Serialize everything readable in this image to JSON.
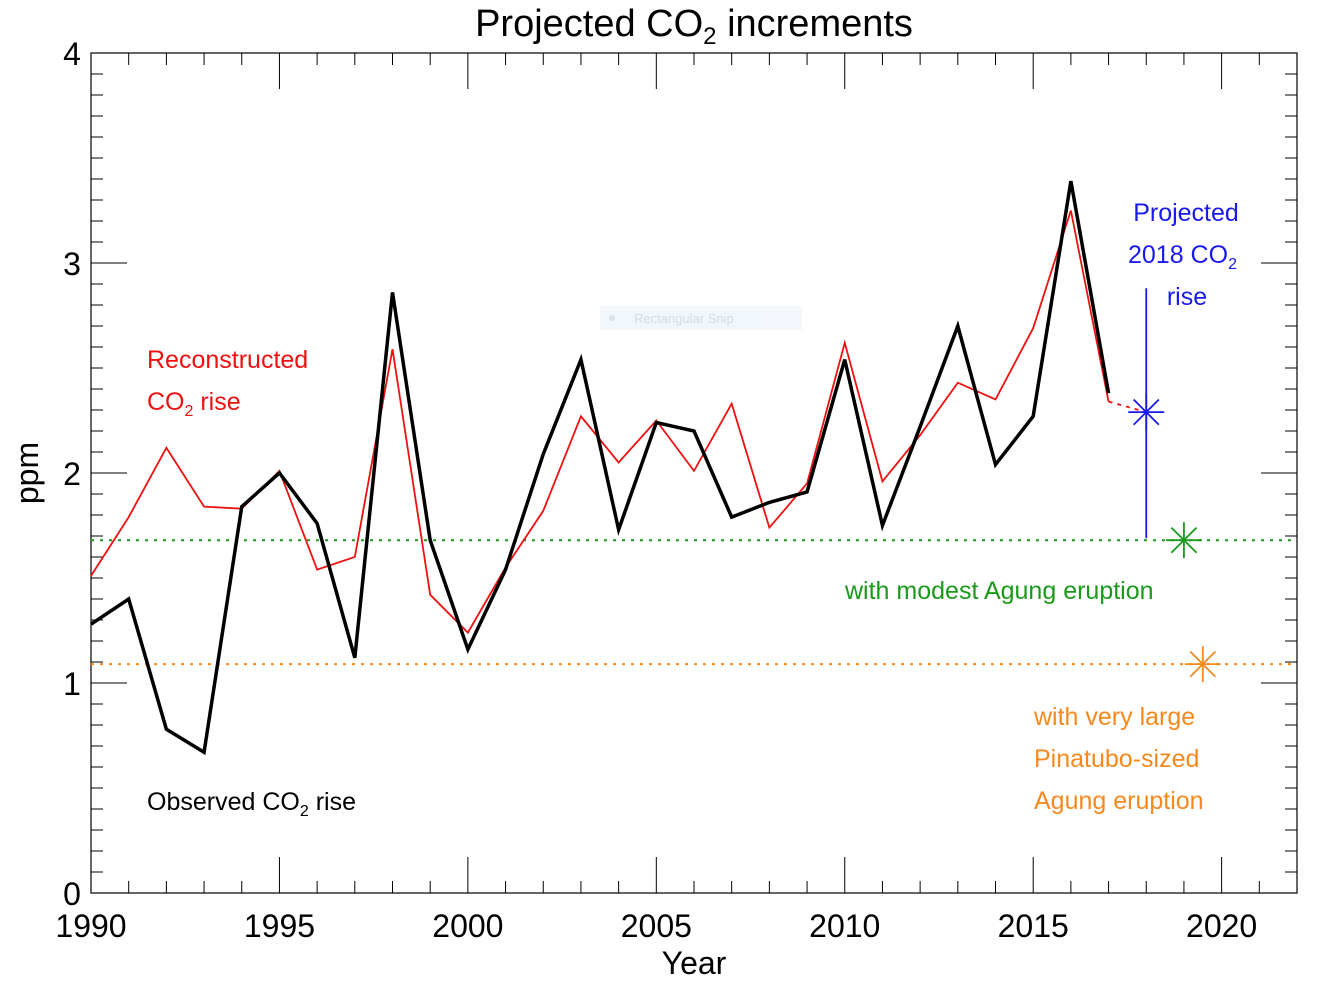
{
  "chart_data": {
    "type": "line",
    "title": "Projected CO",
    "title_subscript": "2",
    "title_suffix": " increments",
    "xlabel": "Year",
    "ylabel": "ppm",
    "xlim": [
      1990,
      2022
    ],
    "ylim": [
      0,
      4
    ],
    "x_ticks": [
      "1990",
      "1995",
      "2000",
      "2005",
      "2010",
      "2015",
      "2020"
    ],
    "y_ticks": [
      "0",
      "1",
      "2",
      "3",
      "4"
    ],
    "grid": false,
    "years": [
      1990,
      1991,
      1992,
      1993,
      1994,
      1995,
      1996,
      1997,
      1998,
      1999,
      2000,
      2001,
      2002,
      2003,
      2004,
      2005,
      2006,
      2007,
      2008,
      2009,
      2010,
      2011,
      2012,
      2013,
      2014,
      2015,
      2016,
      2017
    ],
    "series": [
      {
        "label_pre": "Observed CO",
        "label_sub": "2",
        "label_post": " rise",
        "color": "#000000",
        "values": [
          1.28,
          1.4,
          0.78,
          0.67,
          1.84,
          2.0,
          1.76,
          1.12,
          2.86,
          1.68,
          1.16,
          1.54,
          2.09,
          2.54,
          1.73,
          2.24,
          2.2,
          1.79,
          1.86,
          1.91,
          2.54,
          1.75,
          2.22,
          2.7,
          2.04,
          2.27,
          3.39,
          2.38
        ]
      },
      {
        "label_pre": "Reconstructed",
        "label_line2_pre": "CO",
        "label_sub": "2",
        "label_post": " rise",
        "color": "#ee1111",
        "values": [
          1.51,
          1.79,
          2.12,
          1.84,
          1.83,
          2.01,
          1.54,
          1.6,
          2.59,
          1.42,
          1.24,
          1.55,
          1.82,
          2.27,
          2.05,
          2.25,
          2.01,
          2.33,
          1.74,
          1.95,
          2.62,
          1.96,
          2.18,
          2.43,
          2.35,
          2.69,
          3.25,
          2.34
        ]
      }
    ],
    "projection": {
      "x": 2018,
      "y": 2.29,
      "err_low": 1.69,
      "err_high": 2.88,
      "color": "#1a1aee",
      "label_line1": "Projected",
      "label_line2_pre": "2018 CO",
      "label_sub": "2",
      "label_line3": "rise"
    },
    "scenarios": [
      {
        "x": 2019,
        "y": 1.68,
        "color": "#1a9a1a",
        "label": "with modest Agung eruption"
      },
      {
        "x": 2019.5,
        "y": 1.09,
        "color": "#f5891e",
        "label_lines": [
          "with very large",
          "Pinatubo-sized",
          "Agung eruption"
        ]
      }
    ]
  },
  "overlay": {
    "watermark": "Rectangular Snip"
  }
}
